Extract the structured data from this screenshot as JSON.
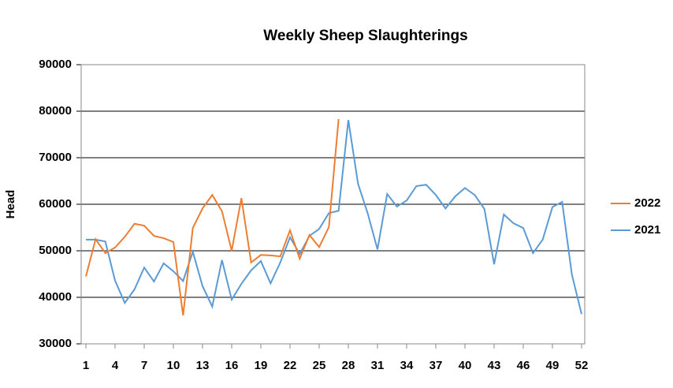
{
  "chart_data": {
    "type": "line",
    "title": "Weekly Sheep Slaughterings",
    "y_label": "Head",
    "x": [
      1,
      2,
      3,
      4,
      5,
      6,
      7,
      8,
      9,
      10,
      11,
      12,
      13,
      14,
      15,
      16,
      17,
      18,
      19,
      20,
      21,
      22,
      23,
      24,
      25,
      26,
      27,
      28,
      29,
      30,
      31,
      32,
      33,
      34,
      35,
      36,
      37,
      38,
      39,
      40,
      41,
      42,
      43,
      44,
      45,
      46,
      47,
      48,
      49,
      50,
      51,
      52
    ],
    "xlim": [
      1,
      52
    ],
    "xticks": [
      1,
      4,
      7,
      10,
      13,
      16,
      19,
      22,
      25,
      28,
      31,
      34,
      37,
      40,
      43,
      46,
      49,
      52
    ],
    "ylim": [
      30000,
      90000
    ],
    "yticks": [
      30000,
      40000,
      50000,
      60000,
      70000,
      80000,
      90000
    ],
    "grid": true,
    "legend": "right",
    "series": [
      {
        "name": "2022",
        "color": "#ed7d31",
        "values": [
          44500,
          52500,
          49500,
          50700,
          53000,
          55800,
          55400,
          53200,
          52700,
          51900,
          36100,
          54900,
          59100,
          62000,
          58500,
          50000,
          61300,
          47500,
          49100,
          49000,
          48800,
          54400,
          48300,
          53400,
          50800,
          55100,
          78300,
          null,
          null,
          null,
          null,
          null,
          null,
          null,
          null,
          null,
          null,
          null,
          null,
          null,
          null,
          null,
          null,
          null,
          null,
          null,
          null,
          null,
          null,
          null,
          null,
          null
        ]
      },
      {
        "name": "2021",
        "color": "#5b9bd5",
        "values": [
          52400,
          52400,
          52000,
          43600,
          38800,
          41700,
          46400,
          43400,
          47300,
          45600,
          43500,
          49800,
          42400,
          38000,
          48000,
          39500,
          42900,
          45800,
          47800,
          43000,
          47500,
          52900,
          49300,
          53200,
          54700,
          58100,
          58600,
          78100,
          64400,
          58000,
          50300,
          62200,
          59500,
          60800,
          63900,
          64200,
          62000,
          59100,
          61700,
          63500,
          62000,
          59000,
          47100,
          57800,
          55900,
          54900,
          49500,
          52400,
          59400,
          60500,
          44900,
          36400
        ]
      }
    ]
  }
}
